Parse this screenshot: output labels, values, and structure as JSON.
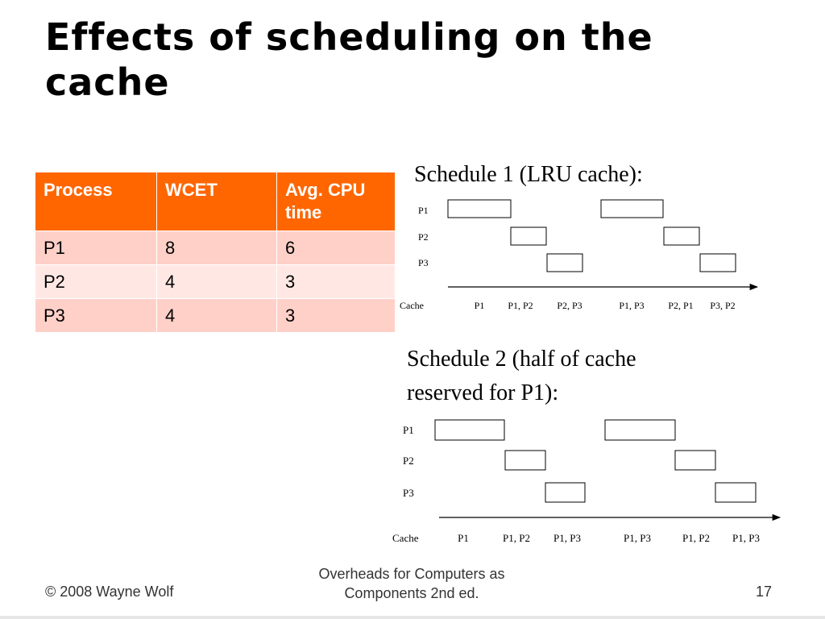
{
  "slide": {
    "title": "Effects of scheduling on the cache"
  },
  "table": {
    "headers": [
      "Process",
      "WCET",
      "Avg. CPU time"
    ],
    "rows": [
      [
        "P1",
        "8",
        "6"
      ],
      [
        "P2",
        "4",
        "3"
      ],
      [
        "P3",
        "4",
        "3"
      ]
    ]
  },
  "schedule1": {
    "caption": "Schedule 1 (LRU cache):",
    "process_labels": [
      "P1",
      "P2",
      "P3"
    ],
    "cache_label": "Cache",
    "cache_states": [
      "P1",
      "P1, P2",
      "P2, P3",
      "P1, P3",
      "P2, P1",
      "P3, P2"
    ]
  },
  "schedule2": {
    "caption": "Schedule 2 (half of cache reserved for P1):",
    "process_labels": [
      "P1",
      "P2",
      "P3"
    ],
    "cache_label": "Cache",
    "cache_states": [
      "P1",
      "P1, P2",
      "P1, P3",
      "P1, P3",
      "P1, P2",
      "P1, P3"
    ]
  },
  "footer": {
    "copyright": "© 2008 Wayne Wolf",
    "center": "Overheads for Computers as Components 2nd ed.",
    "page_number": "17"
  }
}
